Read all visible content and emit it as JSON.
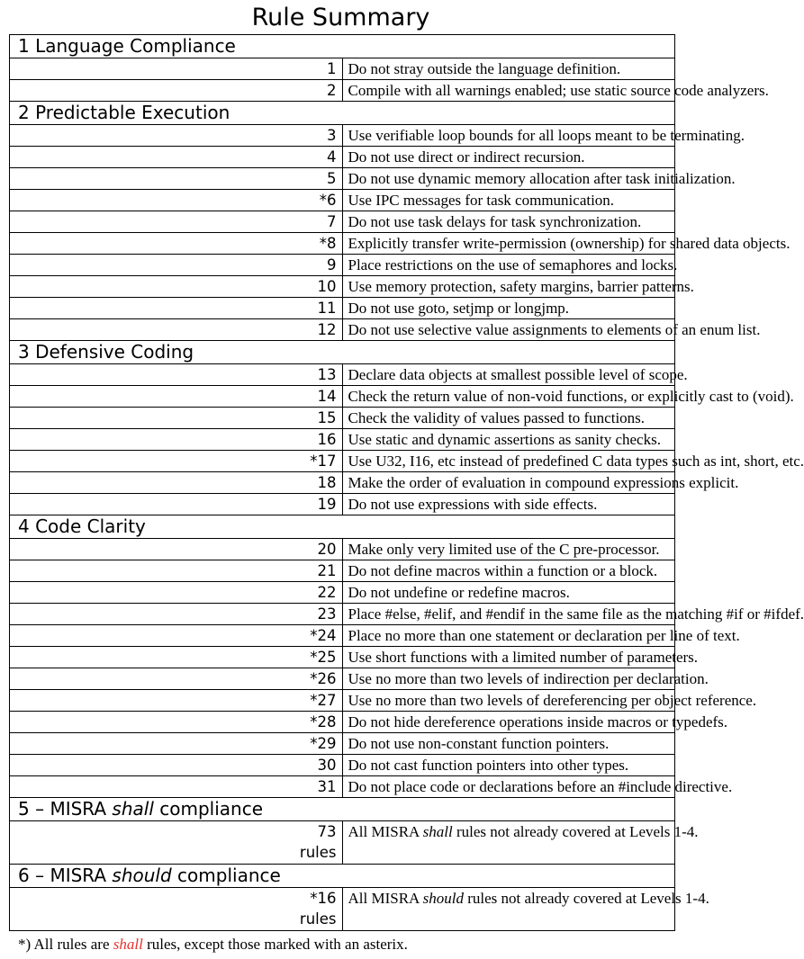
{
  "title": "Rule Summary",
  "sections": [
    {
      "heading": "1 Language Compliance",
      "rules": [
        {
          "num": "1",
          "text": "Do not stray outside the language definition."
        },
        {
          "num": "2",
          "text": "Compile with all warnings enabled; use static source code analyzers."
        }
      ]
    },
    {
      "heading": "2 Predictable Execution",
      "rules": [
        {
          "num": "3",
          "text": "Use verifiable loop bounds for all loops meant to be terminating."
        },
        {
          "num": "4",
          "text": "Do not use direct or indirect recursion."
        },
        {
          "num": "5",
          "text": "Do not use dynamic memory allocation after task initialization."
        },
        {
          "num": "*6",
          "text": "Use IPC messages for task communication."
        },
        {
          "num": "7",
          "text": "Do not use task delays for task synchronization."
        },
        {
          "num": "*8",
          "text": "Explicitly transfer write-permission (ownership) for shared data objects."
        },
        {
          "num": "9",
          "text": "Place restrictions on the use of semaphores and locks."
        },
        {
          "num": "10",
          "text": "Use memory protection, safety margins, barrier patterns."
        },
        {
          "num": "11",
          "text": "Do not use goto, setjmp or longjmp."
        },
        {
          "num": "12",
          "text": "Do not use selective value assignments to elements of an enum list."
        }
      ]
    },
    {
      "heading": "3 Defensive Coding",
      "rules": [
        {
          "num": "13",
          "text": "Declare data objects at smallest possible level of scope."
        },
        {
          "num": "14",
          "text": "Check the return value of non-void functions, or explicitly cast to (void)."
        },
        {
          "num": "15",
          "text": "Check the validity of values passed to functions."
        },
        {
          "num": "16",
          "text": "Use static and dynamic assertions as sanity checks."
        },
        {
          "num": "*17",
          "text": "Use U32, I16, etc instead of predefined C data types such as int, short, etc."
        },
        {
          "num": "18",
          "text": "Make the order of evaluation in compound expressions explicit."
        },
        {
          "num": "19",
          "text": "Do not use expressions with side effects."
        }
      ]
    },
    {
      "heading": "4 Code Clarity",
      "rules": [
        {
          "num": "20",
          "text": "Make only very limited use of the C pre-processor."
        },
        {
          "num": "21",
          "text": "Do not define macros within a function or a block."
        },
        {
          "num": "22",
          "text": "Do not undefine or redefine macros."
        },
        {
          "num": "23",
          "text": "Place #else, #elif, and #endif in the same file as the matching #if or #ifdef."
        },
        {
          "num": "*24",
          "text": "Place no more than one statement or declaration per line of text."
        },
        {
          "num": "*25",
          "text": "Use short functions with a limited number of parameters."
        },
        {
          "num": "*26",
          "text": "Use no more than two levels of indirection per declaration."
        },
        {
          "num": "*27",
          "text": "Use no more than two levels of dereferencing per object reference."
        },
        {
          "num": "*28",
          "text": "Do not hide dereference operations inside macros or typedefs."
        },
        {
          "num": "*29",
          "text": "Do not use non-constant function pointers."
        },
        {
          "num": "30",
          "text": "Do not cast function pointers into other types."
        },
        {
          "num": "31",
          "text": "Do not place code or declarations before an #include directive."
        }
      ]
    }
  ],
  "misra": [
    {
      "heading_prefix": "5 – MISRA ",
      "heading_italic": "shall",
      "heading_suffix": " compliance",
      "num": "73",
      "num_unit": "rules",
      "text_prefix": "All MISRA ",
      "text_italic": "shall",
      "text_suffix": " rules not already covered at Levels 1-4."
    },
    {
      "heading_prefix": "6 – MISRA ",
      "heading_italic": "should",
      "heading_suffix": " compliance",
      "num": "*16",
      "num_unit": "rules",
      "text_prefix": "All MISRA ",
      "text_italic": "should",
      "text_suffix": " rules not already covered at Levels 1-4."
    }
  ],
  "footnote": {
    "prefix": "*) All rules are ",
    "highlight": "shall",
    "suffix": " rules, except those marked with an asterix.",
    "highlight_color": "#e8302a"
  }
}
